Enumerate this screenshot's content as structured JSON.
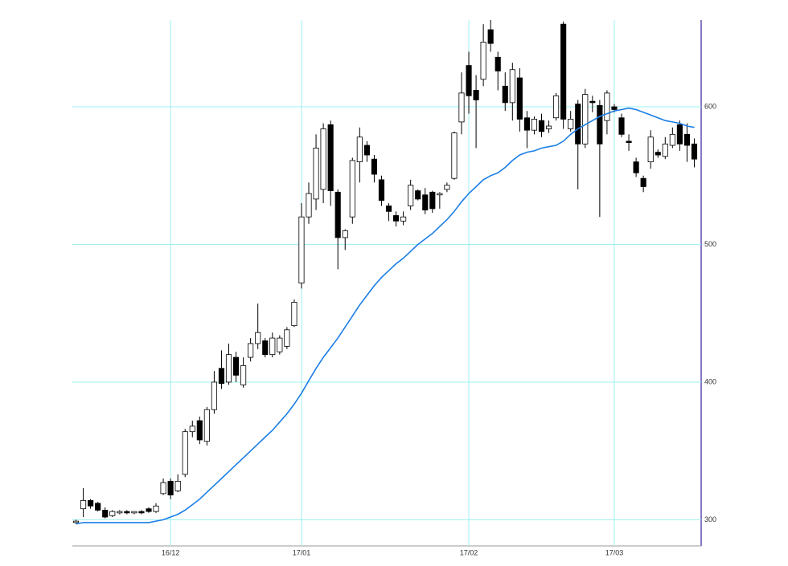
{
  "chart_data": {
    "type": "candlestick",
    "categories": [
      null,
      null,
      null,
      null,
      null,
      null,
      null,
      null,
      null,
      null,
      null,
      null,
      null,
      "16/12",
      null,
      null,
      null,
      null,
      null,
      null,
      null,
      null,
      null,
      null,
      null,
      null,
      null,
      null,
      null,
      null,
      null,
      "17/01",
      null,
      null,
      null,
      null,
      null,
      null,
      null,
      null,
      null,
      null,
      null,
      null,
      null,
      null,
      null,
      null,
      null,
      null,
      null,
      null,
      null,
      null,
      "17/02",
      null,
      null,
      null,
      null,
      null,
      null,
      null,
      null,
      null,
      null,
      null,
      null,
      null,
      null,
      null,
      null,
      null,
      null,
      null,
      "17/03",
      null,
      null,
      null,
      null,
      null,
      null,
      null,
      null,
      null,
      null,
      null
    ],
    "open": [
      298,
      308,
      314,
      312,
      307,
      303,
      305,
      306,
      305,
      306,
      308,
      306,
      319,
      328,
      321,
      333,
      364,
      372,
      357,
      380,
      410,
      400,
      418,
      398,
      418,
      428,
      430,
      420,
      422,
      426,
      441,
      472,
      520,
      533,
      540,
      587,
      538,
      505,
      520,
      560,
      572,
      562,
      547,
      528,
      521,
      517,
      528,
      539,
      536,
      538,
      536,
      540,
      548,
      589,
      630,
      612,
      620,
      656,
      636,
      615,
      603,
      621,
      592,
      583,
      590,
      584,
      592,
      660,
      584,
      602,
      573,
      604,
      601,
      590,
      600,
      592,
      575,
      560,
      548,
      560,
      567,
      564,
      572,
      587,
      580,
      573
    ],
    "high": [
      300,
      323,
      315,
      313,
      309,
      307,
      307,
      307,
      306,
      307,
      309,
      312,
      330,
      330,
      333,
      366,
      372,
      375,
      382,
      408,
      423,
      428,
      422,
      418,
      432,
      457,
      432,
      436,
      434,
      440,
      460,
      530,
      545,
      580,
      588,
      590,
      540,
      511,
      563,
      585,
      575,
      565,
      550,
      530,
      524,
      524,
      547,
      540,
      541,
      539,
      538,
      545,
      582,
      625,
      640,
      623,
      660,
      663,
      640,
      625,
      632,
      628,
      597,
      593,
      595,
      590,
      610,
      662,
      597,
      605,
      613,
      608,
      605,
      612,
      602,
      595,
      580,
      563,
      550,
      583,
      569,
      578,
      585,
      590,
      588,
      577
    ],
    "low": [
      297,
      302,
      308,
      306,
      301,
      302,
      304,
      304,
      304,
      304,
      305,
      305,
      318,
      315,
      320,
      331,
      360,
      355,
      354,
      377,
      395,
      398,
      400,
      396,
      415,
      424,
      418,
      418,
      420,
      424,
      440,
      468,
      515,
      525,
      530,
      528,
      482,
      496,
      515,
      545,
      560,
      545,
      528,
      517,
      513,
      514,
      525,
      532,
      522,
      523,
      526,
      538,
      547,
      580,
      595,
      570,
      615,
      640,
      612,
      597,
      590,
      582,
      570,
      580,
      578,
      581,
      590,
      584,
      582,
      540,
      570,
      596,
      520,
      580,
      596,
      578,
      568,
      549,
      538,
      555,
      563,
      562,
      570,
      568,
      560,
      556
    ],
    "close": [
      299,
      314,
      310,
      307,
      302,
      306,
      306,
      305,
      306,
      305,
      306,
      310,
      327,
      318,
      328,
      364,
      368,
      358,
      380,
      400,
      399,
      420,
      405,
      412,
      428,
      436,
      420,
      432,
      432,
      438,
      458,
      520,
      537,
      570,
      584,
      539,
      505,
      510,
      561,
      578,
      565,
      551,
      532,
      524,
      517,
      520,
      543,
      533,
      525,
      526,
      537,
      543,
      581,
      610,
      608,
      605,
      647,
      646,
      626,
      603,
      627,
      591,
      583,
      591,
      582,
      586,
      608,
      591,
      591,
      573,
      609,
      603,
      573,
      610,
      598,
      580,
      574,
      552,
      542,
      578,
      565,
      573,
      580,
      573,
      572,
      562
    ],
    "up_color": "#ffffff",
    "down_color": "#000000",
    "line": {
      "color": "#1a7ee6",
      "values": [
        297,
        298,
        298,
        298,
        298,
        298,
        298,
        298,
        298,
        298,
        298,
        299,
        300,
        302,
        304,
        307,
        311,
        315,
        320,
        325,
        330,
        335,
        340,
        345,
        350,
        355,
        360,
        365,
        371,
        377,
        384,
        392,
        401,
        410,
        418,
        425,
        432,
        440,
        448,
        456,
        463,
        470,
        476,
        481,
        486,
        490,
        495,
        500,
        504,
        508,
        513,
        518,
        524,
        531,
        537,
        542,
        547,
        550,
        552,
        556,
        561,
        565,
        567,
        568,
        570,
        571,
        572,
        575,
        580,
        584,
        587,
        590,
        593,
        595,
        597,
        598,
        599,
        598,
        596,
        594,
        592,
        590,
        589,
        588,
        586,
        585
      ]
    },
    "ylim": [
      281,
      663
    ],
    "yticks": [
      300,
      400,
      500,
      600
    ],
    "grid": true
  }
}
